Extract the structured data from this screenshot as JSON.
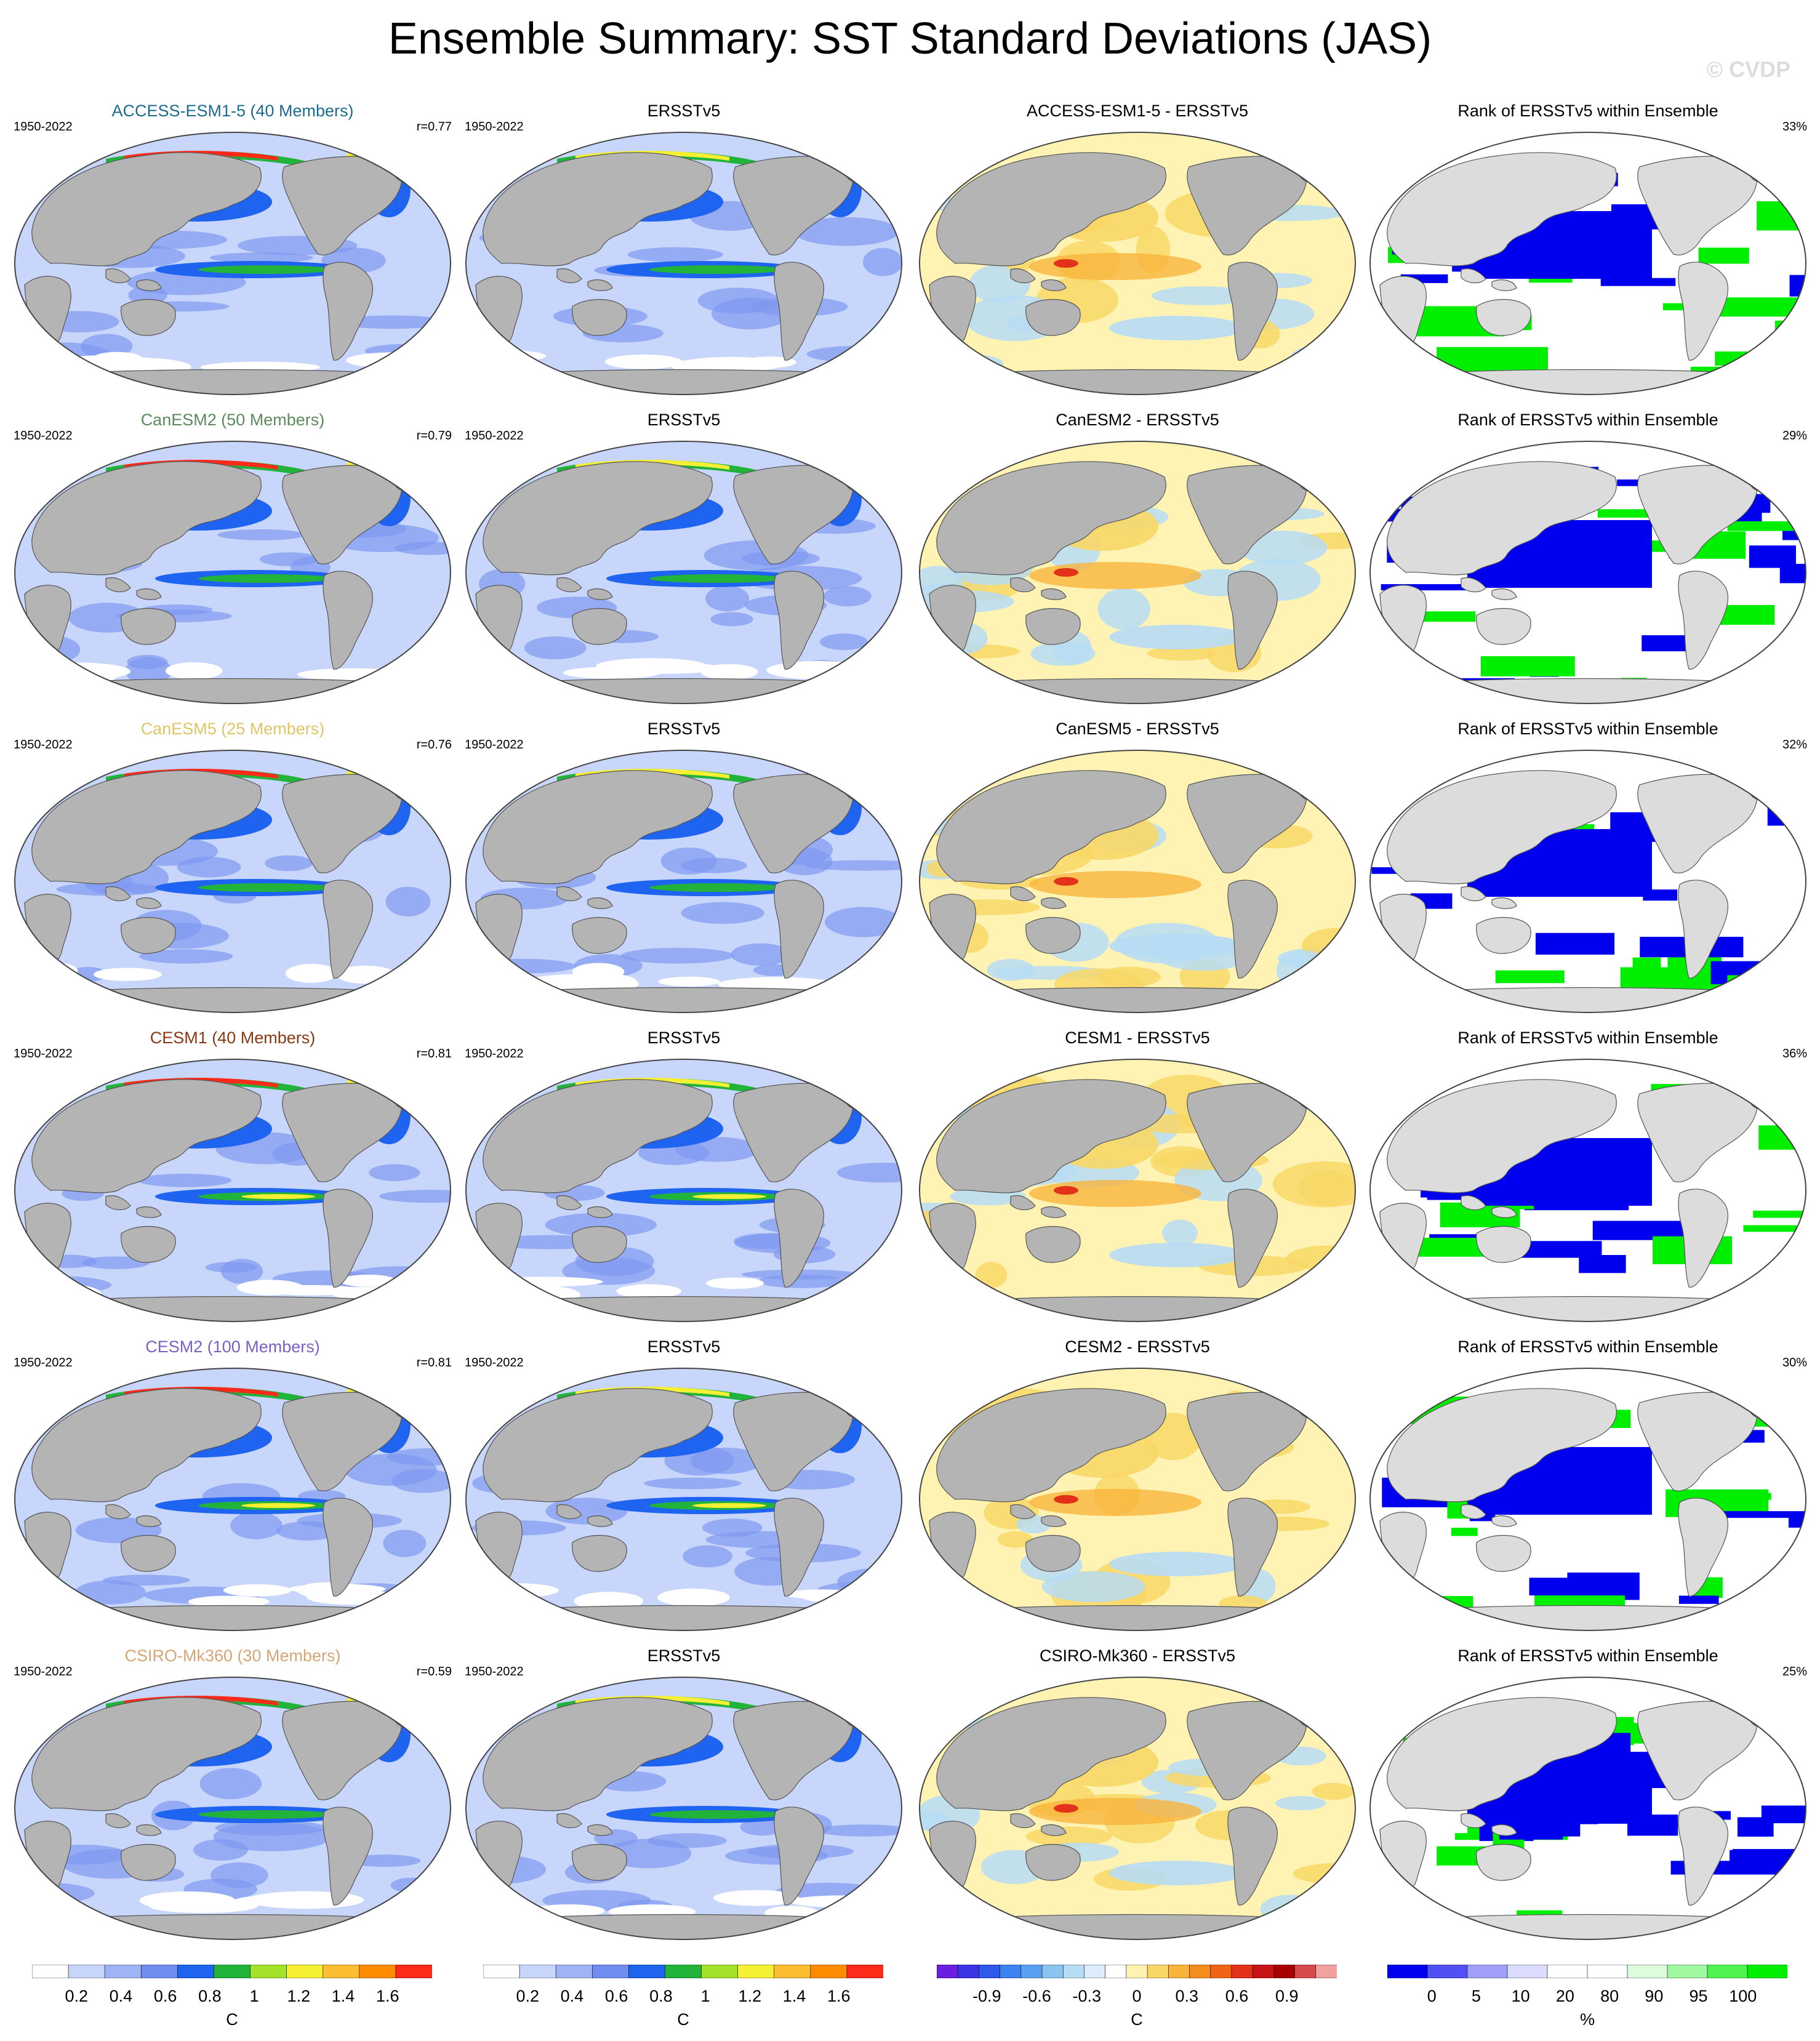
{
  "title": "Ensemble Summary: SST Standard Deviations (JAS)",
  "watermark": "© CVDP",
  "colors": {
    "land": "#b4b4b4",
    "ocean_low": "#c8d6fb",
    "ocean_mid": "#7f98f0",
    "blue": "#1e64f0",
    "green": "#22b33a",
    "yellow": "#f5f034",
    "red": "#ff2a1a",
    "diff_pos": "#f8d766",
    "diff_neg": "#b7dcf5",
    "rank_low": "#0000ee",
    "rank_high": "#00ee00",
    "land_rank": "#dcdcdc"
  },
  "rows": [
    {
      "model_title": "ACCESS-ESM1-5 (40 Members)",
      "title_color": "#1d6b8f",
      "period": "1950-2022",
      "corr": "r=0.77",
      "obs_title": "ERSSTv5",
      "obs_period": "1950-2022",
      "diff_title": "ACCESS-ESM1-5 - ERSSTv5",
      "rank_title": "Rank of ERSSTv5 within Ensemble",
      "rank_pct": "33%"
    },
    {
      "model_title": "CanESM2 (50 Members)",
      "title_color": "#5d8a5d",
      "period": "1950-2022",
      "corr": "r=0.79",
      "obs_title": "ERSSTv5",
      "obs_period": "1950-2022",
      "diff_title": "CanESM2 - ERSSTv5",
      "rank_title": "Rank of ERSSTv5 within Ensemble",
      "rank_pct": "29%"
    },
    {
      "model_title": "CanESM5 (25 Members)",
      "title_color": "#e0c566",
      "period": "1950-2022",
      "corr": "r=0.76",
      "obs_title": "ERSSTv5",
      "obs_period": "1950-2022",
      "diff_title": "CanESM5 - ERSSTv5",
      "rank_title": "Rank of ERSSTv5 within Ensemble",
      "rank_pct": "32%"
    },
    {
      "model_title": "CESM1 (40 Members)",
      "title_color": "#8a3a12",
      "period": "1950-2022",
      "corr": "r=0.81",
      "obs_title": "ERSSTv5",
      "obs_period": "1950-2022",
      "diff_title": "CESM1 - ERSSTv5",
      "rank_title": "Rank of ERSSTv5 within Ensemble",
      "rank_pct": "36%"
    },
    {
      "model_title": "CESM2 (100 Members)",
      "title_color": "#7a62c4",
      "period": "1950-2022",
      "corr": "r=0.81",
      "obs_title": "ERSSTv5",
      "obs_period": "1950-2022",
      "diff_title": "CESM2 - ERSSTv5",
      "rank_title": "Rank of ERSSTv5 within Ensemble",
      "rank_pct": "30%"
    },
    {
      "model_title": "CSIRO-Mk360 (30 Members)",
      "title_color": "#d3a676",
      "period": "1950-2022",
      "corr": "r=0.59",
      "obs_title": "ERSSTv5",
      "obs_period": "1950-2022",
      "diff_title": "CSIRO-Mk360 - ERSSTv5",
      "rank_title": "Rank of ERSSTv5 within Ensemble",
      "rank_pct": "25%"
    }
  ],
  "colorbars": [
    {
      "unit": "C",
      "labels": [
        "0.2",
        "0.4",
        "0.6",
        "0.8",
        "1",
        "1.2",
        "1.4",
        "1.6"
      ],
      "colors": [
        "#ffffff",
        "#c8d6fb",
        "#9fb4f4",
        "#6f8ef0",
        "#1e64f0",
        "#22b33a",
        "#a4e22a",
        "#f5f034",
        "#fcbe32",
        "#ff8c00",
        "#ff2a1a"
      ]
    },
    {
      "unit": "C",
      "labels": [
        "0.2",
        "0.4",
        "0.6",
        "0.8",
        "1",
        "1.2",
        "1.4",
        "1.6"
      ],
      "colors": [
        "#ffffff",
        "#c8d6fb",
        "#9fb4f4",
        "#6f8ef0",
        "#1e64f0",
        "#22b33a",
        "#a4e22a",
        "#f5f034",
        "#fcbe32",
        "#ff8c00",
        "#ff2a1a"
      ]
    },
    {
      "unit": "C",
      "labels": [
        "-0.9",
        "-0.6",
        "-0.3",
        "0",
        "0.3",
        "0.6",
        "0.9"
      ],
      "colors": [
        "#6a1ee0",
        "#3c32e6",
        "#2d5ae8",
        "#3c82f0",
        "#5aa0f0",
        "#8cc4f0",
        "#b7dcf5",
        "#dcecfa",
        "#ffffff",
        "#fff3b4",
        "#f8d766",
        "#f9b43c",
        "#f58c1e",
        "#ef6414",
        "#e2321a",
        "#c81414",
        "#a80000",
        "#d84a4a",
        "#f2a0a0"
      ]
    },
    {
      "unit": "%",
      "labels": [
        "0",
        "5",
        "10",
        "20",
        "80",
        "90",
        "95",
        "100"
      ],
      "colors": [
        "#0000ee",
        "#5050f4",
        "#a0a0fa",
        "#dcdcfe",
        "#ffffff",
        "#ffffff",
        "#dcfcdc",
        "#a0f8a0",
        "#50f450",
        "#00ee00"
      ]
    }
  ]
}
